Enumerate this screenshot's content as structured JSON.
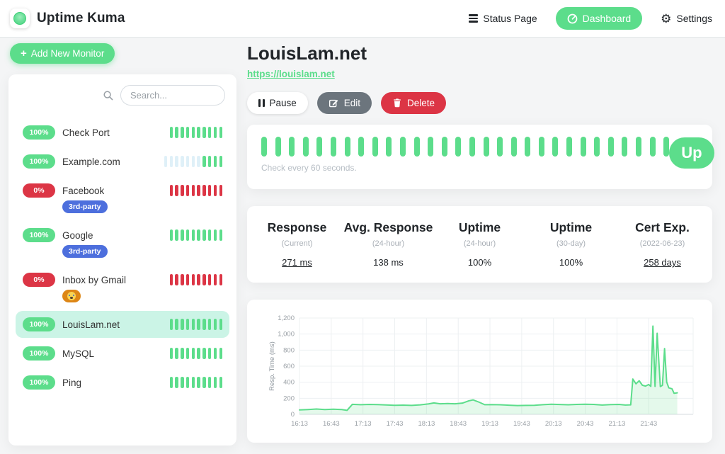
{
  "colors": {
    "primary": "#5cdd8b",
    "danger": "#dc3545",
    "tag_blue": "#4d6fdd",
    "tag_orange": "#dd8616",
    "selected_bg": "#cbf4e6",
    "empty_beat": "#dff0f8"
  },
  "icons": {
    "plus": "+",
    "gear": "⚙"
  },
  "header": {
    "brand": "Uptime Kuma",
    "nav": [
      {
        "label": "Status Page",
        "icon": "list-icon",
        "active": false
      },
      {
        "label": "Dashboard",
        "icon": "gauge-icon",
        "active": true
      },
      {
        "label": "Settings",
        "icon": "gear-icon",
        "active": false
      }
    ]
  },
  "sidebar": {
    "add_button": "Add New Monitor",
    "search_placeholder": "Search...",
    "monitors": [
      {
        "name": "Check Port",
        "uptime": "100%",
        "status": "up",
        "selected": false,
        "tags": [],
        "beats": [
          {
            "status": "up",
            "count": 10
          }
        ]
      },
      {
        "name": "Example.com",
        "uptime": "100%",
        "status": "up",
        "selected": false,
        "tags": [],
        "beats": [
          {
            "status": "empty",
            "count": 7
          },
          {
            "status": "up",
            "count": 4
          }
        ]
      },
      {
        "name": "Facebook",
        "uptime": "0%",
        "status": "down",
        "selected": false,
        "tags": [
          {
            "label": "3rd-party",
            "style": "blue"
          }
        ],
        "beats": [
          {
            "status": "down",
            "count": 10
          }
        ]
      },
      {
        "name": "Google",
        "uptime": "100%",
        "status": "up",
        "selected": false,
        "tags": [
          {
            "label": "3rd-party",
            "style": "blue"
          }
        ],
        "beats": [
          {
            "status": "up",
            "count": 10
          }
        ]
      },
      {
        "name": "Inbox by Gmail",
        "uptime": "0%",
        "status": "down",
        "selected": false,
        "tags": [
          {
            "label": "😭",
            "style": "orange",
            "emoji": true
          }
        ],
        "beats": [
          {
            "status": "down",
            "count": 10
          }
        ]
      },
      {
        "name": "LouisLam.net",
        "uptime": "100%",
        "status": "up",
        "selected": true,
        "tags": [],
        "beats": [
          {
            "status": "up",
            "count": 10
          }
        ]
      },
      {
        "name": "MySQL",
        "uptime": "100%",
        "status": "up",
        "selected": false,
        "tags": [],
        "beats": [
          {
            "status": "up",
            "count": 10
          }
        ]
      },
      {
        "name": "Ping",
        "uptime": "100%",
        "status": "up",
        "selected": false,
        "tags": [],
        "beats": [
          {
            "status": "up",
            "count": 10
          }
        ]
      }
    ]
  },
  "main": {
    "title": "LouisLam.net",
    "url": "https://louislam.net",
    "buttons": {
      "pause": "Pause",
      "edit": "Edit",
      "delete": "Delete"
    },
    "status_card": {
      "beats": [
        {
          "status": "up",
          "count": 30
        }
      ],
      "check_text": "Check every 60 seconds.",
      "status_label": "Up"
    },
    "stats": [
      {
        "label": "Response",
        "sub": "(Current)",
        "value": "271 ms",
        "underline": true
      },
      {
        "label": "Avg. Response",
        "sub": "(24-hour)",
        "value": "138 ms",
        "underline": false
      },
      {
        "label": "Uptime",
        "sub": "(24-hour)",
        "value": "100%",
        "underline": false
      },
      {
        "label": "Uptime",
        "sub": "(30-day)",
        "value": "100%",
        "underline": false
      },
      {
        "label": "Cert Exp.",
        "sub": "(2022-06-23)",
        "value": "258 days",
        "underline": true
      }
    ]
  },
  "chart_data": {
    "type": "line",
    "title": "",
    "xlabel": "",
    "ylabel": "Resp. Time (ms)",
    "ylim": [
      0,
      1200
    ],
    "ytick_step": 200,
    "xlim_minutes": [
      0,
      372
    ],
    "grid": true,
    "legend": "none",
    "xticks": [
      {
        "label": "16:13",
        "t": 0
      },
      {
        "label": "16:43",
        "t": 30
      },
      {
        "label": "17:13",
        "t": 60
      },
      {
        "label": "17:43",
        "t": 90
      },
      {
        "label": "18:13",
        "t": 120
      },
      {
        "label": "18:43",
        "t": 150
      },
      {
        "label": "19:13",
        "t": 180
      },
      {
        "label": "19:43",
        "t": 210
      },
      {
        "label": "20:13",
        "t": 240
      },
      {
        "label": "20:43",
        "t": 270
      },
      {
        "label": "21:13",
        "t": 300
      },
      {
        "label": "21:43",
        "t": 330
      }
    ],
    "series": [
      {
        "name": "Response Time (ms)",
        "color": "#5cdd8b",
        "points": [
          [
            0,
            55
          ],
          [
            8,
            60
          ],
          [
            16,
            66
          ],
          [
            24,
            60
          ],
          [
            32,
            64
          ],
          [
            40,
            60
          ],
          [
            45,
            50
          ],
          [
            50,
            125
          ],
          [
            58,
            120
          ],
          [
            66,
            123
          ],
          [
            74,
            121
          ],
          [
            82,
            117
          ],
          [
            90,
            112
          ],
          [
            98,
            115
          ],
          [
            106,
            111
          ],
          [
            114,
            118
          ],
          [
            122,
            130
          ],
          [
            127,
            142
          ],
          [
            133,
            131
          ],
          [
            140,
            135
          ],
          [
            147,
            131
          ],
          [
            154,
            140
          ],
          [
            160,
            168
          ],
          [
            164,
            180
          ],
          [
            170,
            150
          ],
          [
            175,
            120
          ],
          [
            182,
            121
          ],
          [
            190,
            119
          ],
          [
            198,
            114
          ],
          [
            206,
            109
          ],
          [
            214,
            111
          ],
          [
            222,
            113
          ],
          [
            230,
            120
          ],
          [
            238,
            126
          ],
          [
            246,
            122
          ],
          [
            254,
            119
          ],
          [
            262,
            123
          ],
          [
            270,
            126
          ],
          [
            278,
            123
          ],
          [
            286,
            116
          ],
          [
            294,
            121
          ],
          [
            302,
            124
          ],
          [
            308,
            116
          ],
          [
            313,
            118
          ],
          [
            315,
            440
          ],
          [
            318,
            380
          ],
          [
            321,
            418
          ],
          [
            324,
            363
          ],
          [
            327,
            352
          ],
          [
            330,
            372
          ],
          [
            332,
            348
          ],
          [
            334,
            1100
          ],
          [
            336,
            348
          ],
          [
            338,
            1010
          ],
          [
            341,
            346
          ],
          [
            343,
            362
          ],
          [
            345,
            820
          ],
          [
            347,
            402
          ],
          [
            349,
            330
          ],
          [
            352,
            318
          ],
          [
            354,
            262
          ],
          [
            357,
            268
          ]
        ]
      }
    ]
  }
}
